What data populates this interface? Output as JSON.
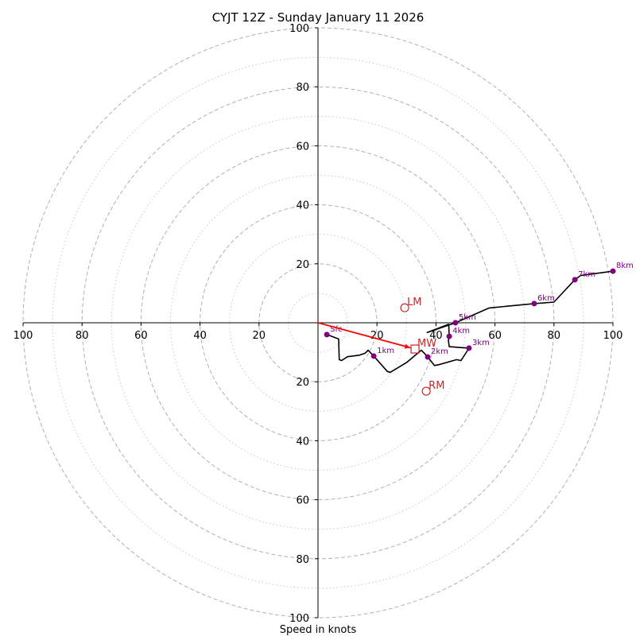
{
  "chart_data": {
    "type": "hodograph",
    "title": "CYJT 12Z - Sunday January 11 2026",
    "xlabel": "Speed in knots",
    "rings_dashed": [
      20,
      40,
      60,
      80,
      100
    ],
    "rings_dotted": [
      10,
      30,
      50,
      70,
      90
    ],
    "range": 100,
    "x_tick_labels": [
      "100",
      "80",
      "60",
      "40",
      "20",
      "20",
      "40",
      "60",
      "80",
      "100"
    ],
    "x_tick_values": [
      -100,
      -80,
      -60,
      -40,
      -20,
      20,
      40,
      60,
      80,
      100
    ],
    "y_tick_labels": [
      "100",
      "80",
      "60",
      "40",
      "20",
      "20",
      "40",
      "60",
      "80",
      "100"
    ],
    "y_tick_values": [
      100,
      80,
      60,
      40,
      20,
      -20,
      -40,
      -60,
      -80,
      -100
    ],
    "hodograph_path": [
      [
        3,
        -4
      ],
      [
        7,
        -5.5
      ],
      [
        7.2,
        -12.5
      ],
      [
        8,
        -12.8
      ],
      [
        10,
        -11.5
      ],
      [
        14,
        -11
      ],
      [
        16,
        -10.3
      ],
      [
        17,
        -9.3
      ],
      [
        18.9,
        -11.3
      ],
      [
        23.5,
        -16.5
      ],
      [
        24.5,
        -16.8
      ],
      [
        30,
        -13.5
      ],
      [
        35,
        -9.3
      ],
      [
        36,
        -10.3
      ],
      [
        37.2,
        -11.6
      ],
      [
        39.5,
        -14.5
      ],
      [
        41,
        -14.2
      ],
      [
        47,
        -12.5
      ],
      [
        48.5,
        -12.8
      ],
      [
        51.2,
        -8.6
      ],
      [
        44.5,
        -8.1
      ],
      [
        44.2,
        -6
      ],
      [
        44.5,
        -4.6
      ],
      [
        44.3,
        -0.5
      ],
      [
        37,
        -3.3
      ],
      [
        46.6,
        0
      ],
      [
        58,
        5
      ],
      [
        73.3,
        6.5
      ],
      [
        80,
        7
      ],
      [
        87.1,
        14.6
      ],
      [
        89,
        16
      ],
      [
        100,
        17.5
      ]
    ],
    "height_markers": [
      {
        "label": "Sfc",
        "u": 3,
        "v": -4
      },
      {
        "label": "1km",
        "u": 18.9,
        "v": -11.3
      },
      {
        "label": "2km",
        "u": 37.2,
        "v": -11.6
      },
      {
        "label": "3km",
        "u": 51.2,
        "v": -8.6
      },
      {
        "label": "4km",
        "u": 44.5,
        "v": -4.6
      },
      {
        "label": "5km",
        "u": 46.6,
        "v": 0
      },
      {
        "label": "6km",
        "u": 73.3,
        "v": 6.5
      },
      {
        "label": "7km",
        "u": 87.1,
        "v": 14.6
      },
      {
        "label": "8km",
        "u": 100,
        "v": 17.5
      }
    ],
    "mean_wind": {
      "label": "MW",
      "u": 32.9,
      "v": -8.9
    },
    "left_mover": {
      "label": "LM",
      "u": 29.4,
      "v": 5.1
    },
    "right_mover": {
      "label": "RM",
      "u": 36.7,
      "v": -23.2
    },
    "colors": {
      "path": "#000000",
      "markers": "#800080",
      "storm_motion": "#c62828",
      "arrow": "#ff0000",
      "grid": "#b0b0b0"
    }
  }
}
